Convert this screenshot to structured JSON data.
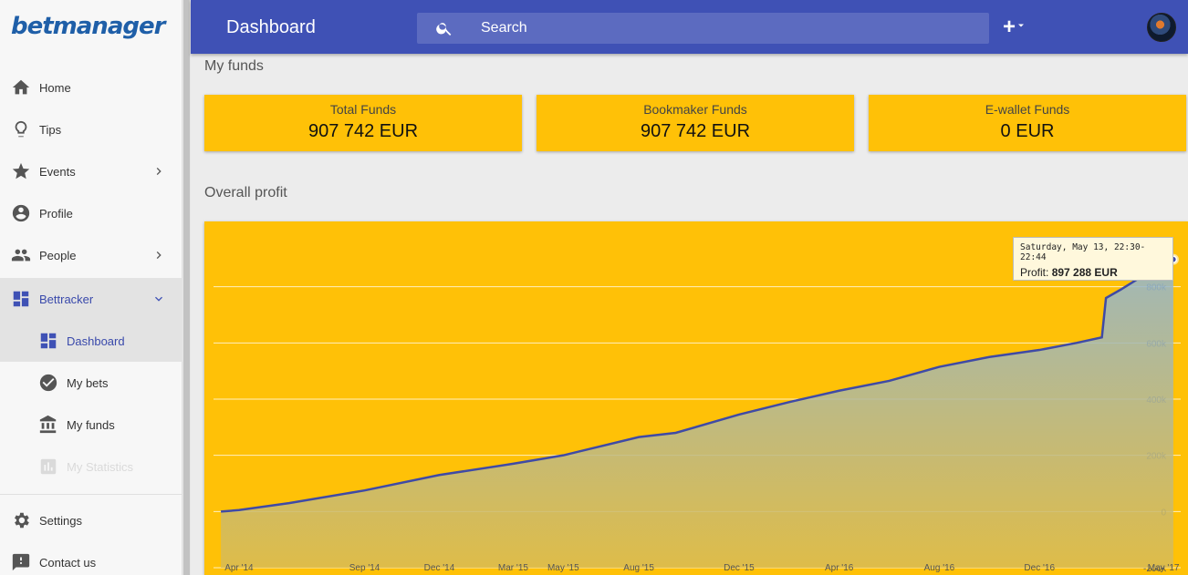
{
  "app": {
    "logo": "betmanager"
  },
  "header": {
    "title": "Dashboard",
    "search_placeholder": "Search",
    "add_label": "+"
  },
  "sidebar": {
    "items": [
      {
        "label": "Home",
        "icon": "home-icon"
      },
      {
        "label": "Tips",
        "icon": "lightbulb-icon"
      },
      {
        "label": "Events",
        "icon": "star-icon"
      },
      {
        "label": "Profile",
        "icon": "account-icon"
      },
      {
        "label": "People",
        "icon": "people-icon"
      },
      {
        "label": "Bettracker",
        "icon": "dashboard-icon"
      },
      {
        "label": "Dashboard",
        "icon": "dashboard-icon"
      },
      {
        "label": "My bets",
        "icon": "check-circle-icon"
      },
      {
        "label": "My funds",
        "icon": "bank-icon"
      },
      {
        "label": "My Statistics",
        "icon": "bar-chart-icon"
      },
      {
        "label": "Settings",
        "icon": "gear-icon"
      },
      {
        "label": "Contact us",
        "icon": "feedback-icon"
      }
    ]
  },
  "funds": {
    "title": "My funds",
    "cards": [
      {
        "label": "Total Funds",
        "value": "907 742 EUR"
      },
      {
        "label": "Bookmaker Funds",
        "value": "907 742 EUR"
      },
      {
        "label": "E-wallet Funds",
        "value": "0 EUR"
      }
    ]
  },
  "profit": {
    "title": "Overall profit",
    "tooltip": {
      "date": "Saturday, May 13, 22:30-22:44",
      "label": "Profit:",
      "value": "897 288 EUR"
    }
  },
  "colors": {
    "header": "#3f51b5",
    "accent": "#ffc107",
    "line": "#3f4aa5"
  },
  "chart_data": {
    "type": "area",
    "x_ticks": [
      "Apr '14",
      "Sep '14",
      "Dec '14",
      "Mar '15",
      "May '15",
      "Aug '15",
      "Dec '15",
      "Apr '16",
      "Aug '16",
      "Dec '16",
      "May '17"
    ],
    "y_ticks": [
      "-200k",
      "0",
      "200k",
      "400k",
      "600k",
      "800k"
    ],
    "ylim": [
      -200000,
      1000000
    ],
    "grid": true,
    "x": [
      "2014-03-10",
      "2014-04-01",
      "2014-06-01",
      "2014-09-01",
      "2014-12-01",
      "2015-03-01",
      "2015-05-01",
      "2015-08-01",
      "2015-09-15",
      "2015-12-01",
      "2016-02-01",
      "2016-04-01",
      "2016-06-01",
      "2016-08-01",
      "2016-10-01",
      "2016-12-01",
      "2017-01-15",
      "2017-02-15",
      "2017-02-20",
      "2017-03-10",
      "2017-04-01",
      "2017-05-13"
    ],
    "y": [
      0,
      5000,
      30000,
      75000,
      130000,
      170000,
      200000,
      265000,
      280000,
      345000,
      390000,
      430000,
      465000,
      515000,
      550000,
      575000,
      600000,
      620000,
      760000,
      790000,
      830000,
      897288
    ]
  }
}
